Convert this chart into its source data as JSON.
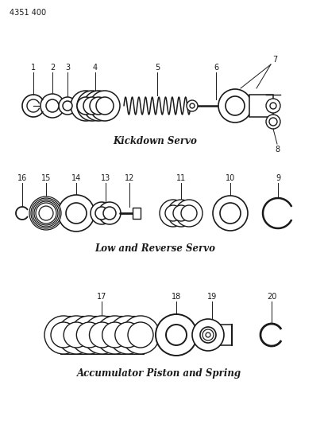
{
  "page_number": "4351 400",
  "background_color": "#ffffff",
  "line_color": "#1a1a1a",
  "fig_width": 4.08,
  "fig_height": 5.33,
  "dpi": 100,
  "section1_label": "Kickdown Servo",
  "section2_label": "Low and Reverse Servo",
  "section3_label": "Accumulator Piston and Spring",
  "label_fontsize": 8.5,
  "number_fontsize": 7,
  "page_num_fontsize": 7
}
